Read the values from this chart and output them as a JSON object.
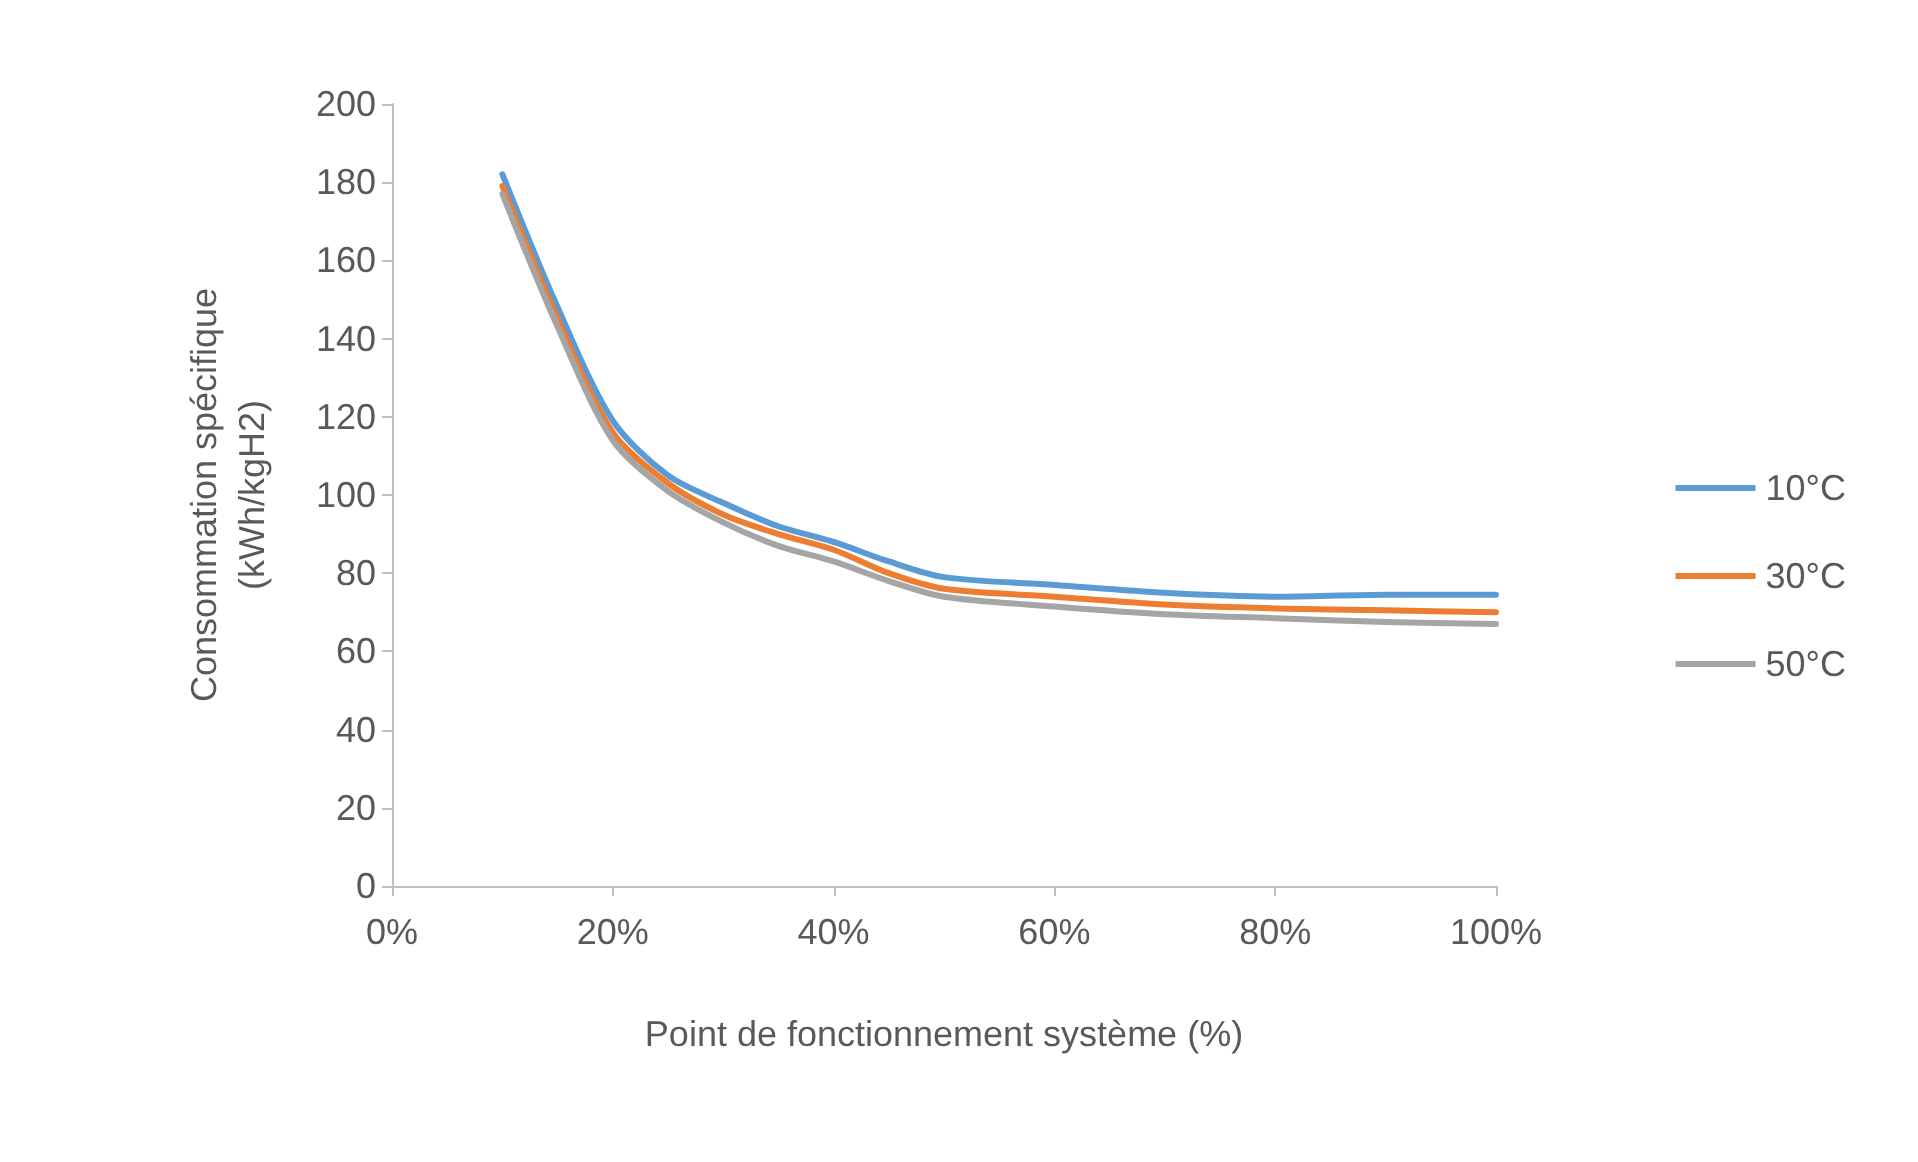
{
  "chart_data": {
    "type": "line",
    "xlabel": "Point de fonctionnement système (%)",
    "ylabel": "Consommation spécifique (kWh/kgH2)",
    "x": [
      10,
      15,
      20,
      25,
      30,
      35,
      40,
      45,
      50,
      60,
      70,
      80,
      90,
      100
    ],
    "series": [
      {
        "name": "10°C",
        "color": "#5b9bd5",
        "values": [
          182,
          148,
          119,
          105,
          98,
          92,
          88,
          83,
          79,
          77,
          75,
          74,
          74.5,
          74.5
        ]
      },
      {
        "name": "30°C",
        "color": "#ed7d31",
        "values": [
          179,
          145,
          116,
          103,
          95,
          90,
          86,
          80,
          76,
          74,
          72,
          71,
          70.5,
          70
        ]
      },
      {
        "name": "50°C",
        "color": "#a5a5a5",
        "values": [
          177,
          143,
          114,
          101,
          93,
          87,
          83,
          78,
          74,
          71.5,
          69.5,
          68.5,
          67.5,
          67
        ]
      }
    ],
    "xlim": [
      0,
      100
    ],
    "xticks": [
      {
        "value": 0,
        "label": "0%"
      },
      {
        "value": 20,
        "label": "20%"
      },
      {
        "value": 40,
        "label": "40%"
      },
      {
        "value": 60,
        "label": "60%"
      },
      {
        "value": 80,
        "label": "80%"
      },
      {
        "value": 100,
        "label": "100%"
      }
    ],
    "ylim": [
      0,
      200
    ],
    "yticks": [
      0,
      20,
      40,
      60,
      80,
      100,
      120,
      140,
      160,
      180,
      200
    ],
    "grid": false,
    "legend": "right",
    "marker": "none",
    "line_style": "solid"
  }
}
